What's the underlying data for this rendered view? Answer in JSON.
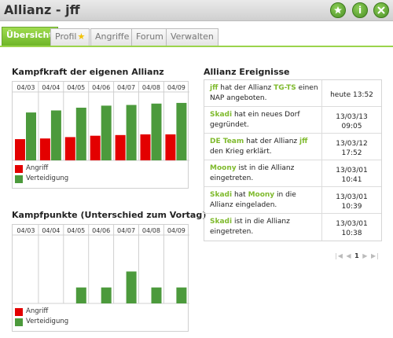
{
  "header": {
    "title": "Allianz - jff",
    "buttons": [
      {
        "icon": "star-icon"
      },
      {
        "icon": "info-icon",
        "glyph": "i"
      },
      {
        "icon": "close-icon"
      }
    ]
  },
  "tabs": [
    {
      "label": "Übersicht",
      "active": true
    },
    {
      "label": "Profil",
      "badge": "star-icon"
    },
    {
      "label": "Angriffe"
    },
    {
      "label": "Forum"
    },
    {
      "label": "Verwalten"
    }
  ],
  "kampfkraft": {
    "title": "Kampfkraft der eigenen Allianz",
    "legend": [
      {
        "label": "Angriff",
        "color": "#e30000"
      },
      {
        "label": "Verteidigung",
        "color": "#4c9a3c"
      }
    ]
  },
  "kampfpunkte": {
    "title": "Kampfpunkte (Unterschied zum Vortag)",
    "legend": [
      {
        "label": "Angriff",
        "color": "#e30000"
      },
      {
        "label": "Verteidigung",
        "color": "#4c9a3c"
      }
    ]
  },
  "chart_data": [
    {
      "type": "bar",
      "title": "Kampfkraft der eigenen Allianz",
      "categories": [
        "04/03",
        "04/04",
        "04/05",
        "04/06",
        "04/07",
        "04/08",
        "04/09"
      ],
      "series": [
        {
          "name": "Angriff",
          "color": "#e30000",
          "values": [
            31,
            32,
            34,
            36,
            37,
            38,
            38
          ]
        },
        {
          "name": "Verteidigung",
          "color": "#4c9a3c",
          "values": [
            70,
            73,
            77,
            80,
            81,
            83,
            84
          ]
        }
      ],
      "ylim": [
        0,
        100
      ]
    },
    {
      "type": "bar",
      "title": "Kampfpunkte (Unterschied zum Vortag)",
      "categories": [
        "04/03",
        "04/04",
        "04/05",
        "04/06",
        "04/07",
        "04/08",
        "04/09"
      ],
      "series": [
        {
          "name": "Angriff",
          "color": "#e30000",
          "values": [
            0,
            0,
            0,
            0,
            0,
            0,
            0
          ]
        },
        {
          "name": "Verteidigung",
          "color": "#4c9a3c",
          "values": [
            0,
            0,
            21,
            21,
            42,
            21,
            21
          ]
        }
      ],
      "ylim": [
        0,
        90
      ]
    }
  ],
  "events": {
    "title": "Allianz Ereignisse",
    "rows": [
      {
        "parts": [
          {
            "t": "jff",
            "h": true
          },
          {
            "t": " hat der Allianz "
          },
          {
            "t": "TG-TS",
            "h": true
          },
          {
            "t": " einen NAP angeboten."
          }
        ],
        "time": [
          "heute 13:52"
        ]
      },
      {
        "parts": [
          {
            "t": "Skadi",
            "h": true
          },
          {
            "t": " hat ein neues Dorf gegründet."
          }
        ],
        "time": [
          "13/03/13",
          "09:05"
        ]
      },
      {
        "parts": [
          {
            "t": "DE Team",
            "h": true
          },
          {
            "t": " hat der Allianz "
          },
          {
            "t": "jff",
            "h": true
          },
          {
            "t": " den Krieg erklärt."
          }
        ],
        "time": [
          "13/03/12",
          "17:52"
        ]
      },
      {
        "parts": [
          {
            "t": "Moony",
            "h": true
          },
          {
            "t": " ist in die Allianz eingetreten."
          }
        ],
        "time": [
          "13/03/01",
          "10:41"
        ]
      },
      {
        "parts": [
          {
            "t": "Skadi",
            "h": true
          },
          {
            "t": " hat "
          },
          {
            "t": "Moony",
            "h": true
          },
          {
            "t": " in die Allianz eingeladen."
          }
        ],
        "time": [
          "13/03/01",
          "10:39"
        ]
      },
      {
        "parts": [
          {
            "t": "Skadi",
            "h": true
          },
          {
            "t": " ist in die Allianz eingetreten."
          }
        ],
        "time": [
          "13/03/01",
          "10:38"
        ]
      }
    ]
  },
  "pager": {
    "first": "|◀",
    "prev": "◀",
    "current": "1",
    "next": "▶",
    "last": "▶|"
  }
}
